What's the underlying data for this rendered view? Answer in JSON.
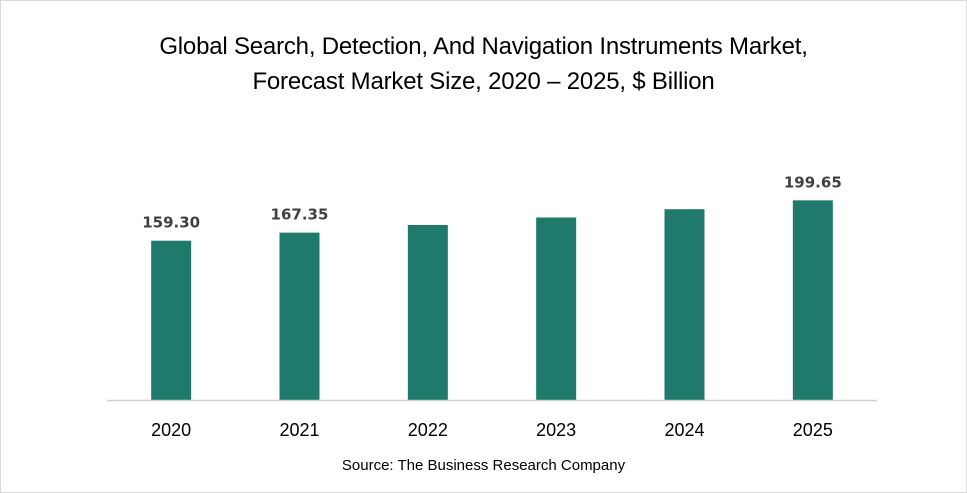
{
  "chart_data": {
    "type": "bar",
    "title": "Global Search, Detection, And Navigation Instruments Market, Forecast Market Size, 2020 – 2025, $ Billion",
    "title_lines": [
      "Global Search, Detection, And Navigation Instruments Market,",
      "Forecast Market Size, 2020 – 2025, $ Billion"
    ],
    "categories": [
      "2020",
      "2021",
      "2022",
      "2023",
      "2024",
      "2025"
    ],
    "values": [
      159.3,
      167.35,
      175.0,
      182.5,
      190.8,
      199.65
    ],
    "data_labels": [
      "159.30",
      "167.35",
      "",
      "",
      "",
      "199.65"
    ],
    "xlabel": "",
    "ylabel": "",
    "ylim": [
      0,
      210
    ],
    "grid": false,
    "legend": "none",
    "bar_color": "#1f7a6b",
    "axis_color": "#d0d0d0",
    "source": "Source: The Business Research Company"
  }
}
